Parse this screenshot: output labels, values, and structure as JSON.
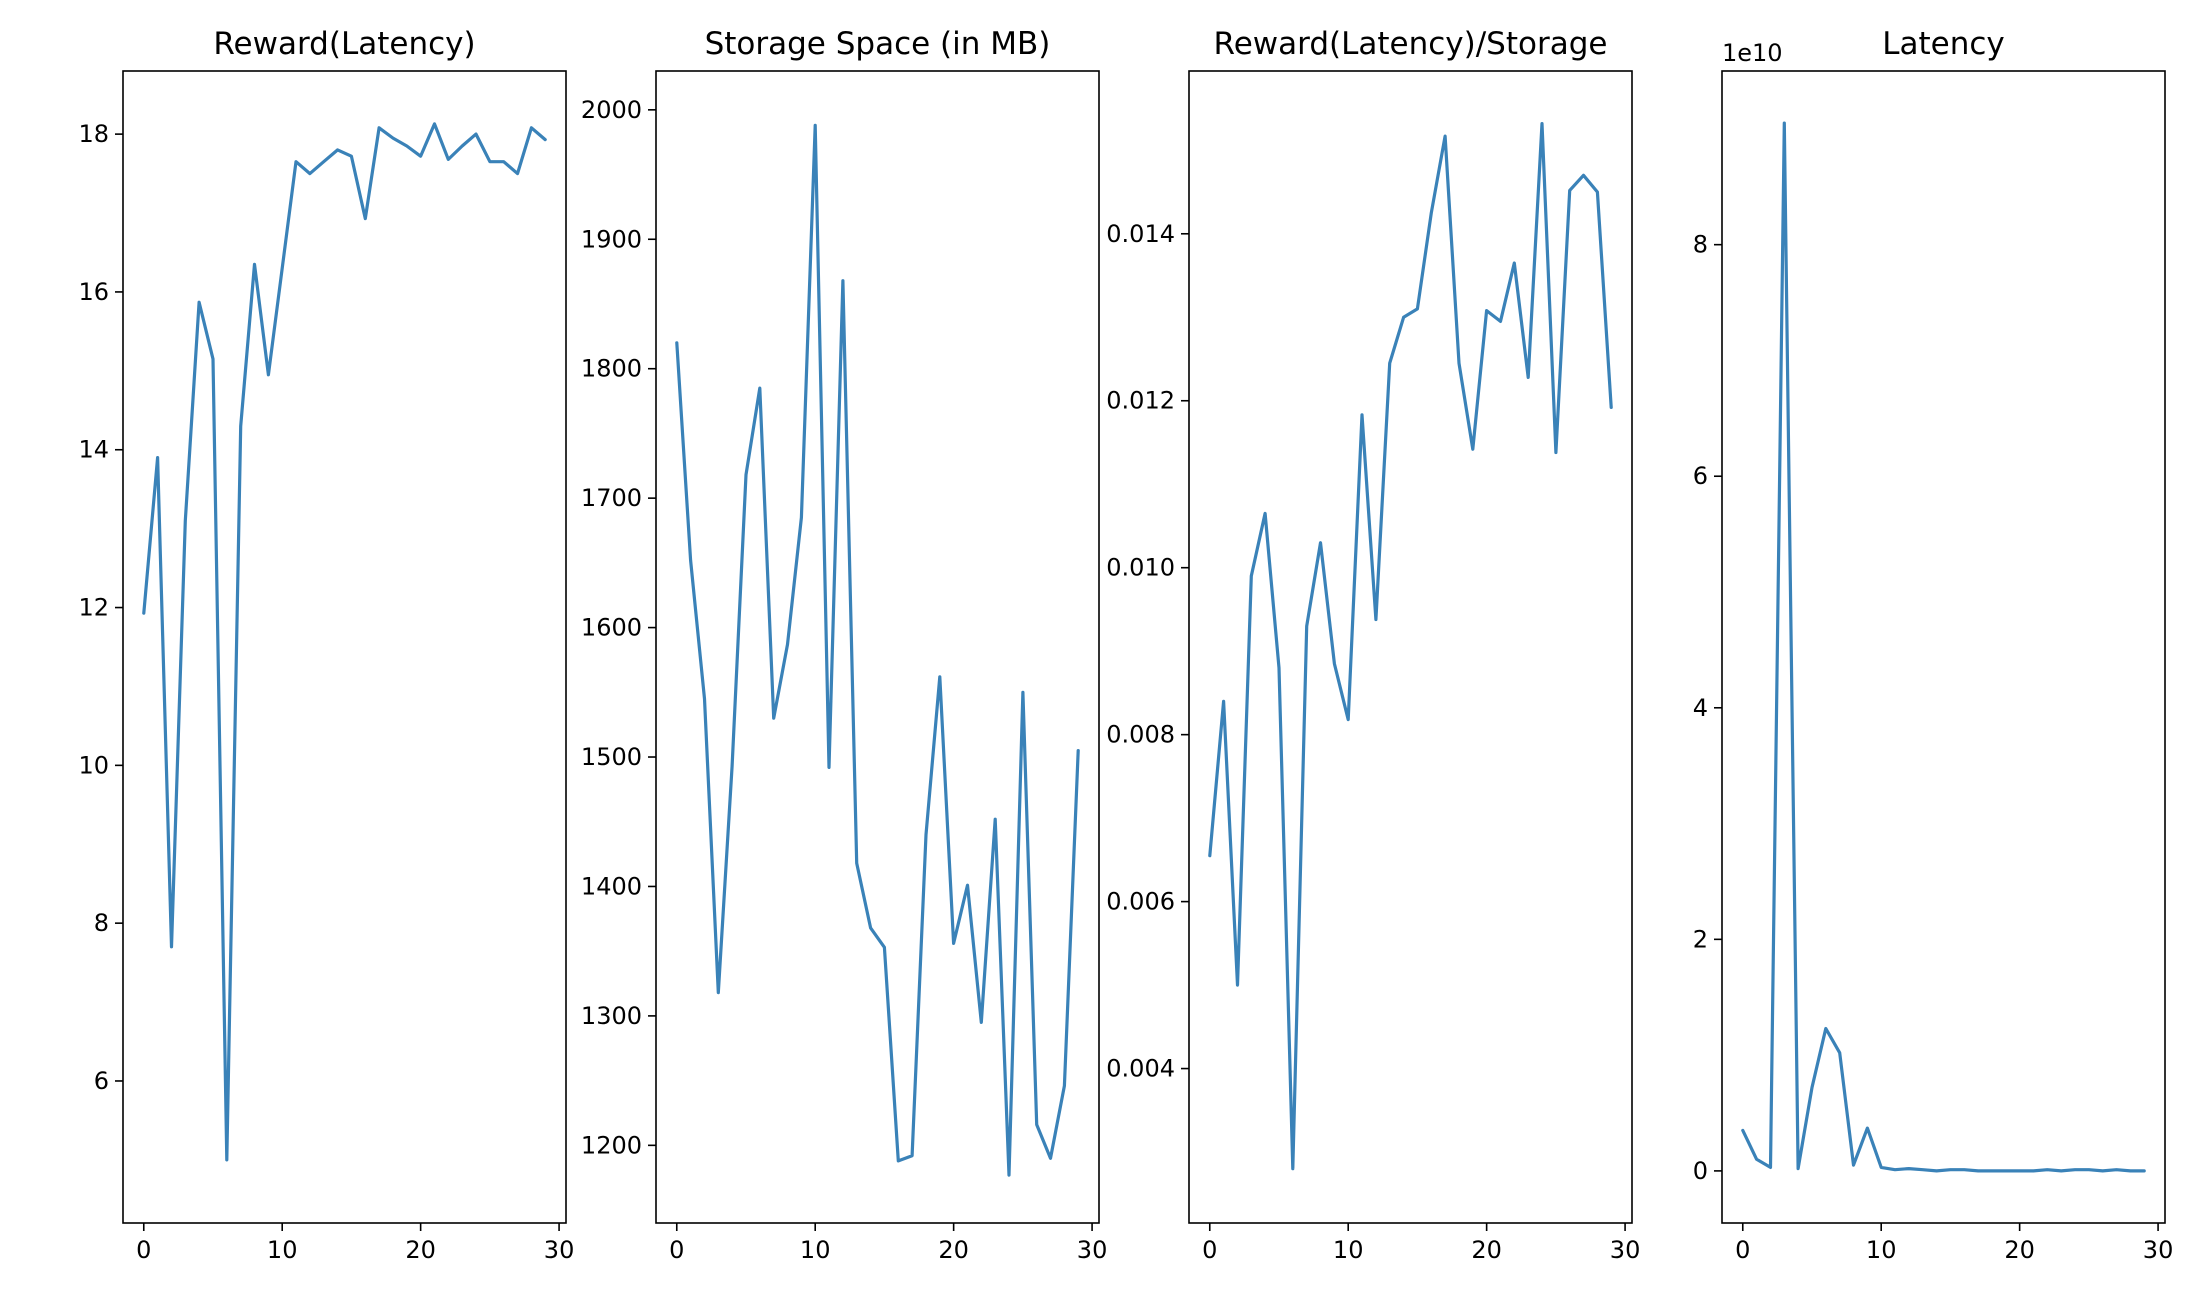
{
  "chart_data": [
    {
      "type": "line",
      "title": "Reward(Latency)",
      "xlabel": "",
      "ylabel": "",
      "xlim": [
        -1.5,
        30.5
      ],
      "ylim": [
        4.2,
        18.8
      ],
      "xticks": [
        0,
        10,
        20,
        30
      ],
      "yticks": [
        6,
        8,
        10,
        12,
        14,
        16,
        18
      ],
      "grid": false,
      "color": "#3a82b8",
      "series": [
        {
          "x": [
            0,
            1,
            2,
            3,
            4,
            5,
            6,
            7,
            8,
            9,
            10,
            11,
            12,
            13,
            14,
            15,
            16,
            17,
            18,
            19,
            20,
            21,
            22,
            23,
            24,
            25,
            26,
            27,
            28,
            29
          ],
          "values": [
            11.93,
            13.9,
            7.7,
            13.1,
            15.87,
            15.15,
            5.0,
            14.3,
            16.35,
            14.95,
            16.3,
            17.65,
            17.5,
            17.65,
            17.8,
            17.72,
            16.93,
            18.08,
            17.95,
            17.85,
            17.72,
            18.13,
            17.68,
            17.85,
            18.0,
            17.65,
            17.65,
            17.5,
            18.08,
            17.93
          ]
        }
      ]
    },
    {
      "type": "line",
      "title": "Storage Space (in MB)",
      "xlabel": "",
      "ylabel": "",
      "xlim": [
        -1.5,
        30.5
      ],
      "ylim": [
        1140,
        2030
      ],
      "xticks": [
        0,
        10,
        20,
        30
      ],
      "yticks": [
        1200,
        1300,
        1400,
        1500,
        1600,
        1700,
        1800,
        1900,
        2000
      ],
      "grid": false,
      "color": "#3a82b8",
      "series": [
        {
          "x": [
            0,
            1,
            2,
            3,
            4,
            5,
            6,
            7,
            8,
            9,
            10,
            11,
            12,
            13,
            14,
            15,
            16,
            17,
            18,
            19,
            20,
            21,
            22,
            23,
            24,
            25,
            26,
            27,
            28,
            29
          ],
          "values": [
            1820,
            1652,
            1545,
            1318,
            1493,
            1718,
            1785,
            1530,
            1587,
            1685,
            1988,
            1492,
            1868,
            1418,
            1368,
            1353,
            1188,
            1192,
            1440,
            1562,
            1356,
            1401,
            1295,
            1452,
            1177,
            1550,
            1216,
            1190,
            1246,
            1505
          ]
        }
      ]
    },
    {
      "type": "line",
      "title": "Reward(Latency)/Storage",
      "xlabel": "",
      "ylabel": "",
      "xlim": [
        -1.5,
        30.5
      ],
      "ylim": [
        0.00215,
        0.01595
      ],
      "xticks": [
        0,
        10,
        20,
        30
      ],
      "yticks": [
        0.004,
        0.006,
        0.008,
        0.01,
        0.012,
        0.014
      ],
      "ytick_labels": [
        "0.004",
        "0.006",
        "0.008",
        "0.010",
        "0.012",
        "0.014"
      ],
      "grid": false,
      "color": "#3a82b8",
      "series": [
        {
          "x": [
            0,
            1,
            2,
            3,
            4,
            5,
            6,
            7,
            8,
            9,
            10,
            11,
            12,
            13,
            14,
            15,
            16,
            17,
            18,
            19,
            20,
            21,
            22,
            23,
            24,
            25,
            26,
            27,
            28,
            29
          ],
          "values": [
            0.00655,
            0.0084,
            0.005,
            0.0099,
            0.01065,
            0.0088,
            0.0028,
            0.0093,
            0.0103,
            0.00885,
            0.00818,
            0.01183,
            0.00938,
            0.01245,
            0.013,
            0.0131,
            0.01425,
            0.01517,
            0.01245,
            0.01142,
            0.01308,
            0.01295,
            0.01365,
            0.01228,
            0.01532,
            0.01138,
            0.01452,
            0.0147,
            0.0145,
            0.01192
          ]
        }
      ]
    },
    {
      "type": "line",
      "title": "Latency",
      "xlabel": "",
      "ylabel": "",
      "offset_text": "1e10",
      "xlim": [
        -1.5,
        30.5
      ],
      "ylim": [
        -0.45,
        9.5
      ],
      "xticks": [
        0,
        10,
        20,
        30
      ],
      "yticks": [
        0,
        2,
        4,
        6,
        8
      ],
      "grid": false,
      "color": "#3a82b8",
      "series": [
        {
          "x": [
            0,
            1,
            2,
            3,
            4,
            5,
            6,
            7,
            8,
            9,
            10,
            11,
            12,
            13,
            14,
            15,
            16,
            17,
            18,
            19,
            20,
            21,
            22,
            23,
            24,
            25,
            26,
            27,
            28,
            29
          ],
          "values": [
            0.35,
            0.1,
            0.03,
            9.05,
            0.02,
            0.72,
            1.23,
            1.02,
            0.05,
            0.37,
            0.03,
            0.01,
            0.02,
            0.01,
            0.0,
            0.01,
            0.01,
            0.0,
            0.0,
            0.0,
            0.0,
            0.0,
            0.01,
            0.0,
            0.01,
            0.01,
            0.0,
            0.01,
            0.0,
            0.0
          ]
        }
      ]
    }
  ]
}
